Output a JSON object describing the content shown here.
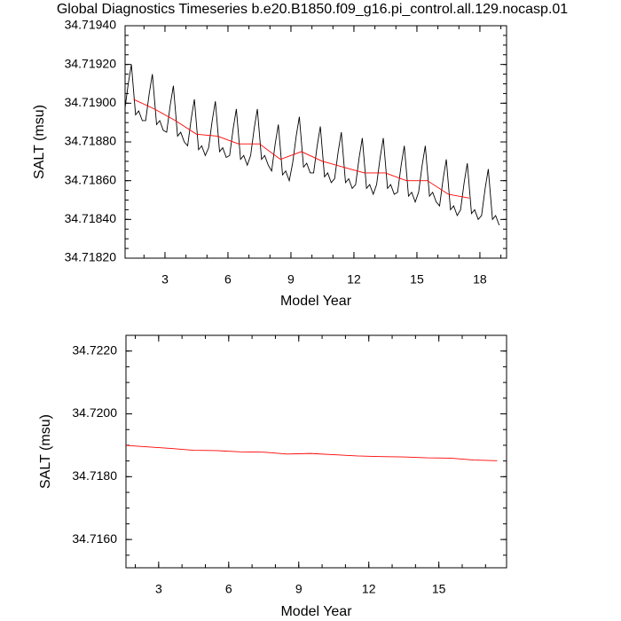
{
  "chart_data": [
    {
      "type": "line",
      "title": "Global Diagnostics Timeseries b.e20.B1850.f09_g16.pi_control.all.129.nocasp.01",
      "x_label": "Model Year",
      "y_label": "SALT (msu)",
      "xlim": [
        1.1,
        19.27
      ],
      "xticks": [
        3,
        6,
        9,
        12,
        15,
        18
      ],
      "ylim": [
        34.7182,
        34.7194
      ],
      "yticks": [
        {
          "value": 34.7182,
          "label": "34.71820"
        },
        {
          "value": 34.7184,
          "label": "34.71840"
        },
        {
          "value": 34.7186,
          "label": "34.71860"
        },
        {
          "value": 34.7188,
          "label": "34.71880"
        },
        {
          "value": 34.719,
          "label": "34.71900"
        },
        {
          "value": 34.7192,
          "label": "34.71920"
        },
        {
          "value": 34.7194,
          "label": "34.71940"
        }
      ],
      "grid": false,
      "series": [
        {
          "color": "#000000",
          "x": [
            1.08,
            1.25,
            1.4,
            1.6,
            1.75,
            1.92,
            2.08,
            2.25,
            2.4,
            2.6,
            2.75,
            2.92,
            3.08,
            3.25,
            3.4,
            3.6,
            3.75,
            3.92,
            4.08,
            4.25,
            4.4,
            4.6,
            4.75,
            4.92,
            5.08,
            5.25,
            5.4,
            5.6,
            5.75,
            5.92,
            6.08,
            6.25,
            6.4,
            6.6,
            6.75,
            6.92,
            7.08,
            7.25,
            7.4,
            7.6,
            7.75,
            7.92,
            8.08,
            8.25,
            8.4,
            8.6,
            8.75,
            8.92,
            9.08,
            9.25,
            9.4,
            9.6,
            9.75,
            9.92,
            10.08,
            10.25,
            10.4,
            10.6,
            10.75,
            10.92,
            11.08,
            11.25,
            11.4,
            11.6,
            11.75,
            11.92,
            12.08,
            12.25,
            12.4,
            12.6,
            12.75,
            12.92,
            13.08,
            13.25,
            13.4,
            13.6,
            13.75,
            13.92,
            14.08,
            14.25,
            14.4,
            14.6,
            14.75,
            14.92,
            15.08,
            15.25,
            15.4,
            15.6,
            15.75,
            15.92,
            16.08,
            16.25,
            16.4,
            16.6,
            16.75,
            16.92,
            17.08,
            17.25,
            17.4,
            17.6,
            17.75,
            17.92,
            18.08,
            18.25,
            18.4,
            18.6,
            18.75,
            18.92
          ],
          "values": [
            34.71896,
            34.7191,
            34.7192,
            34.71894,
            34.71896,
            34.71891,
            34.71891,
            34.71905,
            34.71915,
            34.71889,
            34.71891,
            34.71886,
            34.71885,
            34.71899,
            34.71909,
            34.71883,
            34.71885,
            34.7188,
            34.71878,
            34.71892,
            34.71902,
            34.71876,
            34.71878,
            34.71873,
            34.71877,
            34.71891,
            34.71901,
            34.71875,
            34.71877,
            34.71872,
            34.71873,
            34.71887,
            34.71897,
            34.71871,
            34.71873,
            34.71868,
            34.71873,
            34.71887,
            34.71897,
            34.71871,
            34.71873,
            34.71868,
            34.71865,
            34.71879,
            34.71889,
            34.71863,
            34.71865,
            34.7186,
            34.71869,
            34.71883,
            34.71893,
            34.71867,
            34.71869,
            34.71864,
            34.71864,
            34.71878,
            34.71888,
            34.71862,
            34.71864,
            34.71859,
            34.71861,
            34.71875,
            34.71885,
            34.71859,
            34.71861,
            34.71856,
            34.71858,
            34.71872,
            34.71882,
            34.71856,
            34.71858,
            34.71853,
            34.71858,
            34.71872,
            34.71882,
            34.71856,
            34.71858,
            34.71853,
            34.71854,
            34.71868,
            34.71878,
            34.71852,
            34.71854,
            34.71849,
            34.71854,
            34.71868,
            34.71878,
            34.71852,
            34.71854,
            34.71849,
            34.71847,
            34.71861,
            34.71871,
            34.71845,
            34.71847,
            34.71842,
            34.71845,
            34.71859,
            34.71869,
            34.71843,
            34.71845,
            34.7184,
            34.71842,
            34.71856,
            34.71866,
            34.7184,
            34.71842,
            34.71837
          ]
        },
        {
          "color": "#ff0000",
          "x": [
            1.5,
            2.5,
            3.5,
            4.5,
            5.5,
            6.5,
            7.5,
            8.5,
            9.5,
            10.5,
            11.5,
            12.5,
            13.5,
            14.5,
            15.5,
            16.5,
            17.5
          ],
          "values": [
            34.71902,
            34.71897,
            34.71891,
            34.71884,
            34.71883,
            34.71879,
            34.71879,
            34.71871,
            34.71875,
            34.7187,
            34.71867,
            34.71864,
            34.71864,
            34.7186,
            34.7186,
            34.71853,
            34.71851
          ]
        }
      ]
    },
    {
      "type": "line",
      "x_label": "Model Year",
      "y_label": "SALT (msu)",
      "xlim": [
        1.6,
        17.9
      ],
      "xticks": [
        3,
        6,
        9,
        12,
        15
      ],
      "ylim": [
        34.7151,
        34.7225
      ],
      "yticks": [
        {
          "value": 34.716,
          "label": "34.7160"
        },
        {
          "value": 34.718,
          "label": "34.7180"
        },
        {
          "value": 34.72,
          "label": "34.7200"
        },
        {
          "value": 34.722,
          "label": "34.7220"
        }
      ],
      "grid": false,
      "series": [
        {
          "color": "#ff0000",
          "x": [
            1.5,
            2.5,
            3.5,
            4.5,
            5.5,
            6.5,
            7.5,
            8.5,
            9.5,
            10.5,
            11.5,
            12.5,
            13.5,
            14.5,
            15.5,
            16.5,
            17.5
          ],
          "values": [
            34.719,
            34.71895,
            34.7189,
            34.71884,
            34.71883,
            34.71879,
            34.71878,
            34.71872,
            34.71874,
            34.7187,
            34.71866,
            34.71864,
            34.71863,
            34.7186,
            34.71859,
            34.71853,
            34.71851
          ]
        }
      ]
    }
  ]
}
